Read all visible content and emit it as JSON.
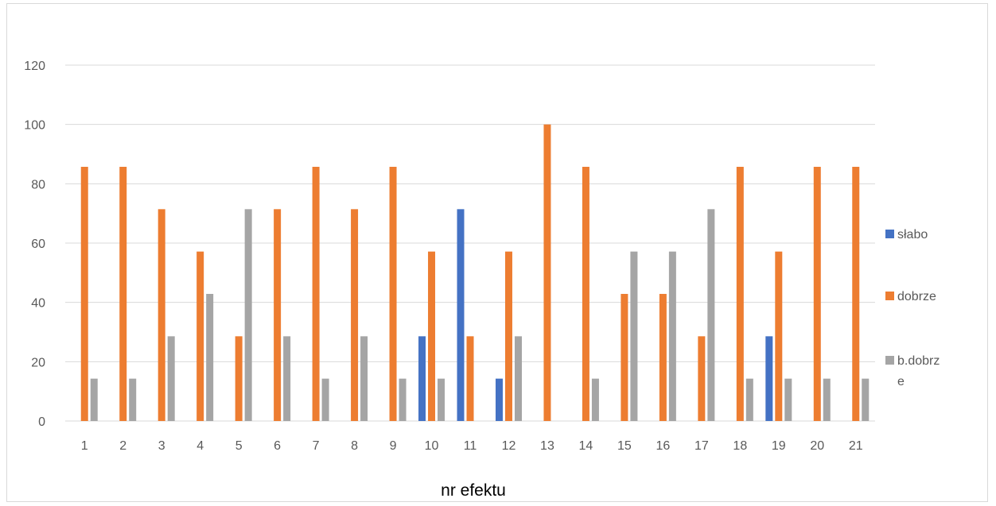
{
  "chart_data": {
    "type": "bar",
    "xlabel": "nr efektu",
    "ylabel": "",
    "ylim": [
      0,
      120
    ],
    "yticks": [
      0,
      20,
      40,
      60,
      80,
      100,
      120
    ],
    "grid": true,
    "legend_position": "right",
    "categories": [
      "1",
      "2",
      "3",
      "4",
      "5",
      "6",
      "7",
      "8",
      "9",
      "10",
      "11",
      "12",
      "13",
      "14",
      "15",
      "16",
      "17",
      "18",
      "19",
      "20",
      "21"
    ],
    "series": [
      {
        "name": "słabo",
        "color": "#4472c4",
        "values": [
          0,
          0,
          0,
          0,
          0,
          0,
          0,
          0,
          0,
          28.57,
          71.43,
          14.29,
          0,
          0,
          0,
          0,
          0,
          0,
          28.57,
          0,
          0
        ]
      },
      {
        "name": "dobrze",
        "color": "#ed7d31",
        "values": [
          85.71,
          85.71,
          71.43,
          57.14,
          28.57,
          71.43,
          85.71,
          71.43,
          85.71,
          57.14,
          28.57,
          57.14,
          100,
          85.71,
          42.86,
          42.86,
          28.57,
          85.71,
          57.14,
          85.71,
          85.71
        ]
      },
      {
        "name": "b.dobrze",
        "legend_lines": [
          "b.dobrz",
          "e"
        ],
        "color": "#a5a5a5",
        "values": [
          14.29,
          14.29,
          28.57,
          42.86,
          71.43,
          28.57,
          14.29,
          28.57,
          14.29,
          14.29,
          0,
          28.57,
          0,
          14.29,
          57.14,
          57.14,
          71.43,
          14.29,
          14.29,
          14.29,
          14.29
        ]
      }
    ]
  }
}
